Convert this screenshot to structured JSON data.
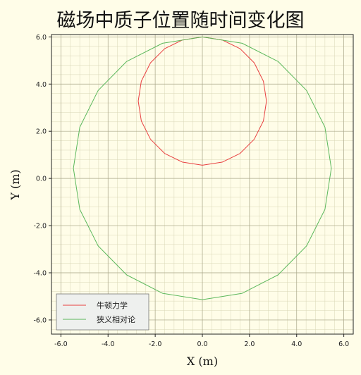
{
  "chart_data": {
    "type": "line",
    "title": "磁场中质子位置随时间变化图",
    "xlabel": "X (m)",
    "ylabel": "Y (m)",
    "xlim": [
      -6.4,
      6.4
    ],
    "ylim": [
      -6.6,
      6.1
    ],
    "x_ticks": [
      -6.0,
      -4.0,
      -2.0,
      0.0,
      2.0,
      4.0,
      6.0
    ],
    "y_ticks": [
      -6.0,
      -4.0,
      -2.0,
      0.0,
      2.0,
      4.0,
      6.0
    ],
    "x_tick_labels": [
      "-6.0",
      "-4.0",
      "-2.0",
      "0.0",
      "2.0",
      "4.0",
      "6.0"
    ],
    "y_tick_labels": [
      "-6.0",
      "-4.0",
      "-2.0",
      "0.0",
      "2.0",
      "4.0",
      "6.0"
    ],
    "grid": true,
    "minor_grid": true,
    "legend_position": "lower-left",
    "colors": {
      "background": "#fffde8",
      "major_grid": "#a9a78a",
      "minor_grid": "#d9d6b6"
    },
    "series": [
      {
        "name": "牛顿力学",
        "color": "#e84040",
        "x": [
          0.0,
          0.84,
          1.6,
          2.2,
          2.59,
          2.72,
          2.59,
          2.2,
          1.6,
          0.84,
          0.0,
          -0.84,
          -1.6,
          -2.2,
          -2.59,
          -2.72,
          -2.59,
          -2.2,
          -1.6,
          -0.84,
          0.0
        ],
        "y": [
          6.0,
          5.87,
          5.5,
          4.9,
          4.12,
          3.28,
          2.44,
          1.66,
          1.06,
          0.69,
          0.56,
          0.69,
          1.06,
          1.66,
          2.44,
          3.28,
          4.12,
          4.9,
          5.5,
          5.87,
          6.0
        ]
      },
      {
        "name": "狭义相对论",
        "color": "#5cb85c",
        "x": [
          0.0,
          1.69,
          3.21,
          4.42,
          5.2,
          5.47,
          5.2,
          4.42,
          3.21,
          1.69,
          0.0,
          -1.69,
          -3.21,
          -4.42,
          -5.2,
          -5.47,
          -5.2,
          -4.42,
          -3.21,
          -1.69,
          0.0
        ],
        "y": [
          6.0,
          5.73,
          4.96,
          3.73,
          2.17,
          0.43,
          -1.31,
          -2.86,
          -4.09,
          -4.87,
          -5.14,
          -4.87,
          -4.09,
          -2.86,
          -1.31,
          0.43,
          2.17,
          3.73,
          4.96,
          5.73,
          6.0
        ]
      }
    ]
  }
}
